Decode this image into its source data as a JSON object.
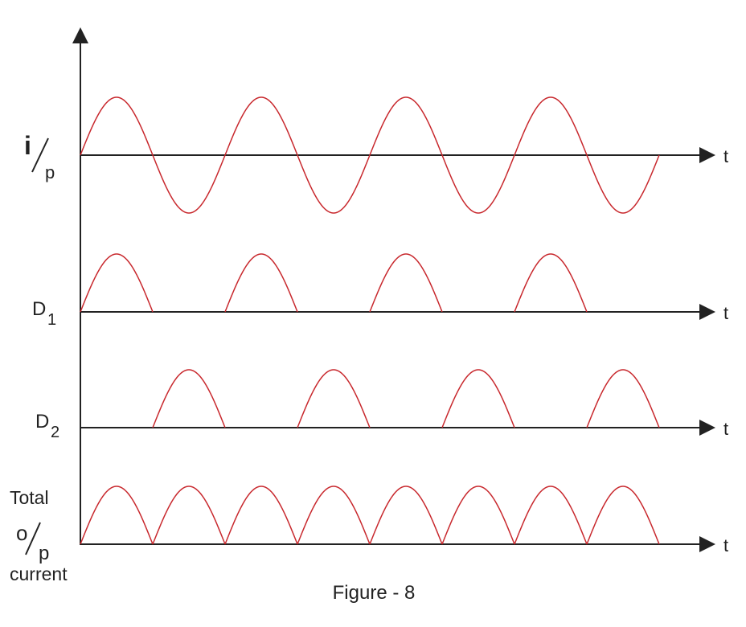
{
  "rows": [
    {
      "label": {
        "main": "i",
        "denominator": "p"
      },
      "axis_label": "t"
    },
    {
      "label": {
        "main": "D",
        "sub": "1"
      },
      "axis_label": "t"
    },
    {
      "label": {
        "main": "D",
        "sub": "2"
      },
      "axis_label": "t"
    },
    {
      "label": {
        "top": "Total",
        "main": "o",
        "denominator": "p",
        "bottom": "current"
      },
      "axis_label": "t"
    }
  ],
  "caption": "Figure - 8"
}
